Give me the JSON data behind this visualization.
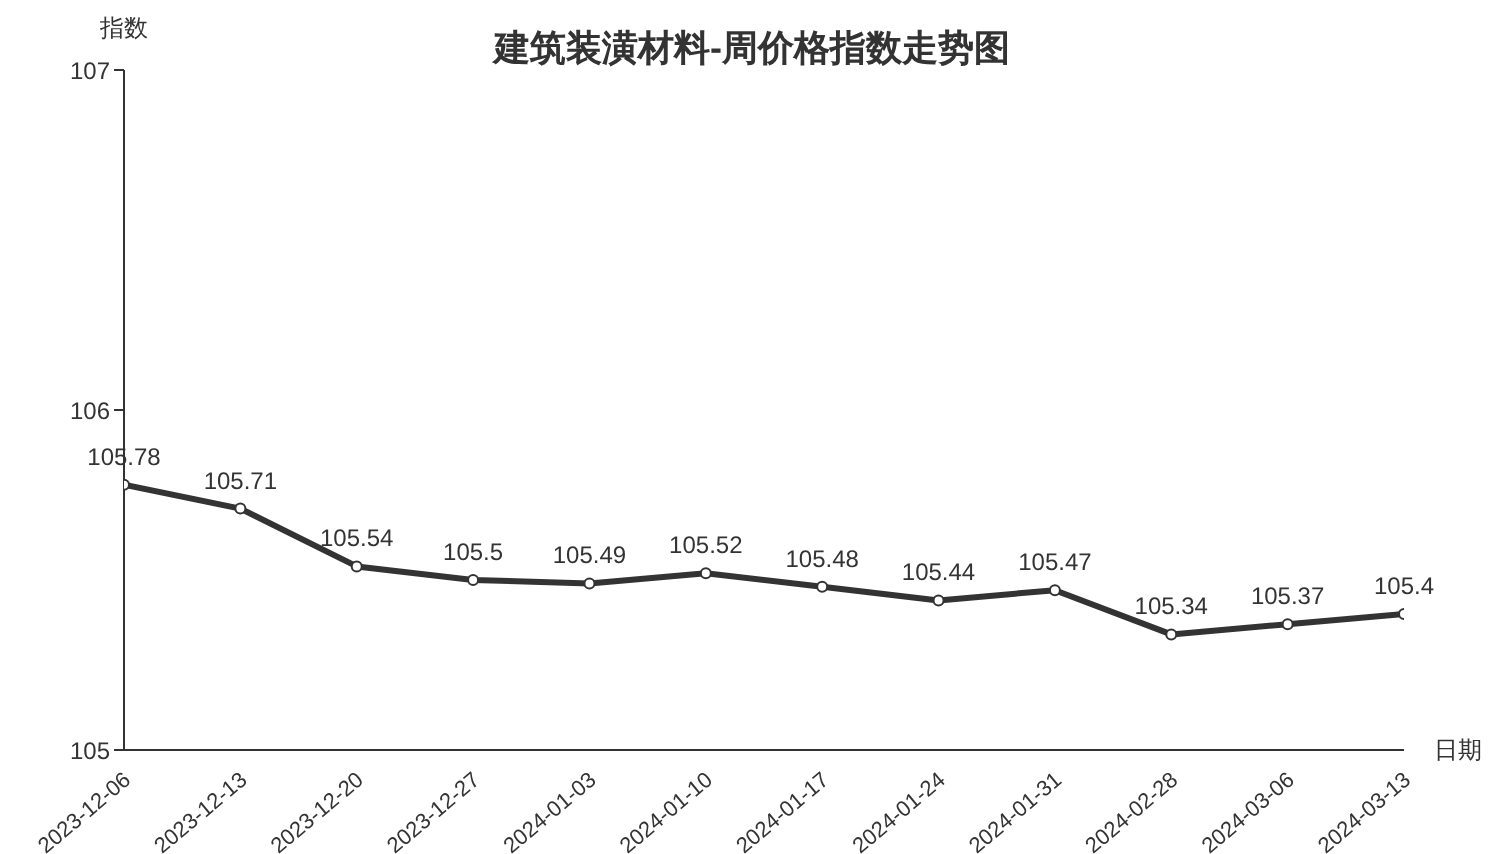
{
  "chart_data": {
    "type": "line",
    "title": "建筑装潢材料-周价格指数走势图",
    "xlabel": "日期",
    "ylabel": "指数",
    "categories": [
      "2023-12-06",
      "2023-12-13",
      "2023-12-20",
      "2023-12-27",
      "2024-01-03",
      "2024-01-10",
      "2024-01-17",
      "2024-01-24",
      "2024-01-31",
      "2024-02-28",
      "2024-03-06",
      "2024-03-13"
    ],
    "series": [
      {
        "color": "#333333",
        "values": [
          105.78,
          105.71,
          105.54,
          105.5,
          105.49,
          105.52,
          105.48,
          105.44,
          105.47,
          105.34,
          105.37,
          105.4
        ]
      }
    ],
    "ylim": [
      105,
      107
    ],
    "yticks": [
      105,
      106,
      107
    ],
    "grid": false,
    "legend": false,
    "marker": "circle",
    "line_style": "solid",
    "data_labels": true
  }
}
